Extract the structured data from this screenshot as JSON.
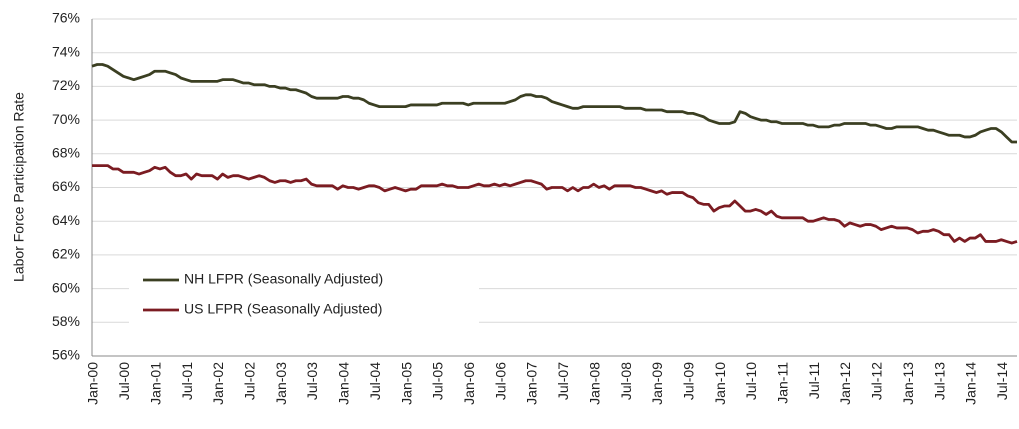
{
  "chart_data": {
    "type": "line",
    "y_label": "Labor Force Participation Rate",
    "categories": [
      "Jan-00",
      null,
      null,
      null,
      null,
      null,
      "Jul-00",
      null,
      null,
      null,
      null,
      null,
      "Jan-01",
      null,
      null,
      null,
      null,
      null,
      "Jul-01",
      null,
      null,
      null,
      null,
      null,
      "Jan-02",
      null,
      null,
      null,
      null,
      null,
      "Jul-02",
      null,
      null,
      null,
      null,
      null,
      "Jan-03",
      null,
      null,
      null,
      null,
      null,
      "Jul-03",
      null,
      null,
      null,
      null,
      null,
      "Jan-04",
      null,
      null,
      null,
      null,
      null,
      "Jul-04",
      null,
      null,
      null,
      null,
      null,
      "Jan-05",
      null,
      null,
      null,
      null,
      null,
      "Jul-05",
      null,
      null,
      null,
      null,
      null,
      "Jan-06",
      null,
      null,
      null,
      null,
      null,
      "Jul-06",
      null,
      null,
      null,
      null,
      null,
      "Jan-07",
      null,
      null,
      null,
      null,
      null,
      "Jul-07",
      null,
      null,
      null,
      null,
      null,
      "Jan-08",
      null,
      null,
      null,
      null,
      null,
      "Jul-08",
      null,
      null,
      null,
      null,
      null,
      "Jan-09",
      null,
      null,
      null,
      null,
      null,
      "Jul-09",
      null,
      null,
      null,
      null,
      null,
      "Jan-10",
      null,
      null,
      null,
      null,
      null,
      "Jul-10",
      null,
      null,
      null,
      null,
      null,
      "Jan-11",
      null,
      null,
      null,
      null,
      null,
      "Jul-11",
      null,
      null,
      null,
      null,
      null,
      "Jan-12",
      null,
      null,
      null,
      null,
      null,
      "Jul-12",
      null,
      null,
      null,
      null,
      null,
      "Jan-13",
      null,
      null,
      null,
      null,
      null,
      "Jul-13",
      null,
      null,
      null,
      null,
      null,
      "Jan-14",
      null,
      null,
      null,
      null,
      null,
      "Jul-14",
      null,
      null,
      null
    ],
    "series": [
      {
        "name": "NH LFPR (Seasonally Adjusted)",
        "color": "#3b3f22",
        "values": [
          73.2,
          73.3,
          73.3,
          73.2,
          73.0,
          72.8,
          72.6,
          72.5,
          72.4,
          72.5,
          72.6,
          72.7,
          72.9,
          72.9,
          72.9,
          72.8,
          72.7,
          72.5,
          72.4,
          72.3,
          72.3,
          72.3,
          72.3,
          72.3,
          72.3,
          72.4,
          72.4,
          72.4,
          72.3,
          72.2,
          72.2,
          72.1,
          72.1,
          72.1,
          72.0,
          72.0,
          71.9,
          71.9,
          71.8,
          71.8,
          71.7,
          71.6,
          71.4,
          71.3,
          71.3,
          71.3,
          71.3,
          71.3,
          71.4,
          71.4,
          71.3,
          71.3,
          71.2,
          71.0,
          70.9,
          70.8,
          70.8,
          70.8,
          70.8,
          70.8,
          70.8,
          70.9,
          70.9,
          70.9,
          70.9,
          70.9,
          70.9,
          71.0,
          71.0,
          71.0,
          71.0,
          71.0,
          70.9,
          71.0,
          71.0,
          71.0,
          71.0,
          71.0,
          71.0,
          71.0,
          71.1,
          71.2,
          71.4,
          71.5,
          71.5,
          71.4,
          71.4,
          71.3,
          71.1,
          71.0,
          70.9,
          70.8,
          70.7,
          70.7,
          70.8,
          70.8,
          70.8,
          70.8,
          70.8,
          70.8,
          70.8,
          70.8,
          70.7,
          70.7,
          70.7,
          70.7,
          70.6,
          70.6,
          70.6,
          70.6,
          70.5,
          70.5,
          70.5,
          70.5,
          70.4,
          70.4,
          70.3,
          70.2,
          70.0,
          69.9,
          69.8,
          69.8,
          69.8,
          69.9,
          70.5,
          70.4,
          70.2,
          70.1,
          70.0,
          70.0,
          69.9,
          69.9,
          69.8,
          69.8,
          69.8,
          69.8,
          69.8,
          69.7,
          69.7,
          69.6,
          69.6,
          69.6,
          69.7,
          69.7,
          69.8,
          69.8,
          69.8,
          69.8,
          69.8,
          69.7,
          69.7,
          69.6,
          69.5,
          69.5,
          69.6,
          69.6,
          69.6,
          69.6,
          69.6,
          69.5,
          69.4,
          69.4,
          69.3,
          69.2,
          69.1,
          69.1,
          69.1,
          69.0,
          69.0,
          69.1,
          69.3,
          69.4,
          69.5,
          69.5,
          69.3,
          69.0,
          68.7,
          68.7
        ]
      },
      {
        "name": "US LFPR (Seasonally Adjusted)",
        "color": "#7b1c22",
        "values": [
          67.3,
          67.3,
          67.3,
          67.3,
          67.1,
          67.1,
          66.9,
          66.9,
          66.9,
          66.8,
          66.9,
          67.0,
          67.2,
          67.1,
          67.2,
          66.9,
          66.7,
          66.7,
          66.8,
          66.5,
          66.8,
          66.7,
          66.7,
          66.7,
          66.5,
          66.8,
          66.6,
          66.7,
          66.7,
          66.6,
          66.5,
          66.6,
          66.7,
          66.6,
          66.4,
          66.3,
          66.4,
          66.4,
          66.3,
          66.4,
          66.4,
          66.5,
          66.2,
          66.1,
          66.1,
          66.1,
          66.1,
          65.9,
          66.1,
          66.0,
          66.0,
          65.9,
          66.0,
          66.1,
          66.1,
          66.0,
          65.8,
          65.9,
          66.0,
          65.9,
          65.8,
          65.9,
          65.9,
          66.1,
          66.1,
          66.1,
          66.1,
          66.2,
          66.1,
          66.1,
          66.0,
          66.0,
          66.0,
          66.1,
          66.2,
          66.1,
          66.1,
          66.2,
          66.1,
          66.2,
          66.1,
          66.2,
          66.3,
          66.4,
          66.4,
          66.3,
          66.2,
          65.9,
          66.0,
          66.0,
          66.0,
          65.8,
          66.0,
          65.8,
          66.0,
          66.0,
          66.2,
          66.0,
          66.1,
          65.9,
          66.1,
          66.1,
          66.1,
          66.1,
          66.0,
          66.0,
          65.9,
          65.8,
          65.7,
          65.8,
          65.6,
          65.7,
          65.7,
          65.7,
          65.5,
          65.4,
          65.1,
          65.0,
          65.0,
          64.6,
          64.8,
          64.9,
          64.9,
          65.2,
          64.9,
          64.6,
          64.6,
          64.7,
          64.6,
          64.4,
          64.6,
          64.3,
          64.2,
          64.2,
          64.2,
          64.2,
          64.2,
          64.0,
          64.0,
          64.1,
          64.2,
          64.1,
          64.1,
          64.0,
          63.7,
          63.9,
          63.8,
          63.7,
          63.8,
          63.8,
          63.7,
          63.5,
          63.6,
          63.7,
          63.6,
          63.6,
          63.6,
          63.5,
          63.3,
          63.4,
          63.4,
          63.5,
          63.4,
          63.2,
          63.2,
          62.8,
          63.0,
          62.8,
          63.0,
          63.0,
          63.2,
          62.8,
          62.8,
          62.8,
          62.9,
          62.8,
          62.7,
          62.8
        ]
      }
    ],
    "ylim": [
      56,
      76
    ],
    "yticks": [
      {
        "value": 56,
        "label": "56%"
      },
      {
        "value": 58,
        "label": "58%"
      },
      {
        "value": 60,
        "label": "60%"
      },
      {
        "value": 62,
        "label": "62%"
      },
      {
        "value": 64,
        "label": "64%"
      },
      {
        "value": 66,
        "label": "66%"
      },
      {
        "value": 68,
        "label": "68%"
      },
      {
        "value": 70,
        "label": "70%"
      },
      {
        "value": 72,
        "label": "72%"
      },
      {
        "value": 74,
        "label": "74%"
      },
      {
        "value": 76,
        "label": "76%"
      }
    ],
    "grid": true,
    "legend_position": "lower-left"
  }
}
